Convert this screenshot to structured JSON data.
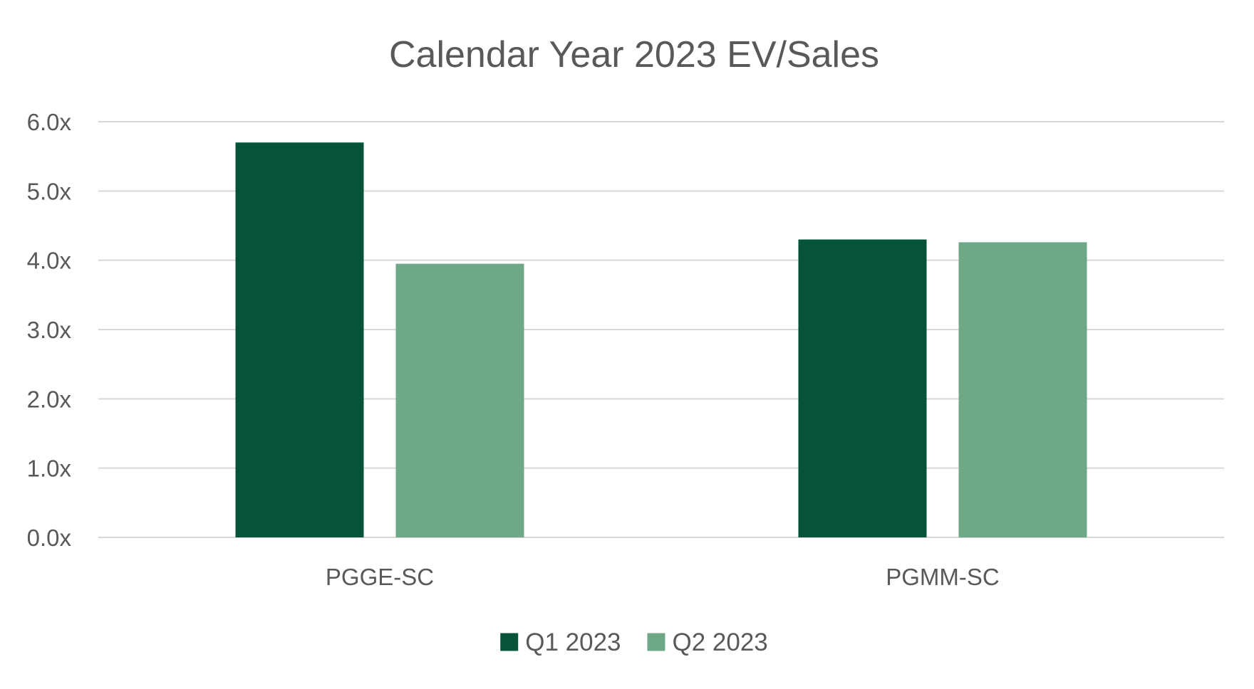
{
  "chart_data": {
    "type": "bar",
    "title": "Calendar Year 2023 EV/Sales",
    "xlabel": "",
    "ylabel": "",
    "categories": [
      "PGGE-SC",
      "PGMM-SC"
    ],
    "series": [
      {
        "name": "Q1 2023",
        "color": "#05543a",
        "values": [
          5.7,
          4.3
        ]
      },
      {
        "name": "Q2 2023",
        "color": "#6fa887",
        "values": [
          3.95,
          4.26
        ]
      }
    ],
    "ylim": [
      0,
      6
    ],
    "yticks": [
      0,
      1,
      2,
      3,
      4,
      5,
      6
    ],
    "ytick_labels": [
      "0.0x",
      "1.0x",
      "2.0x",
      "3.0x",
      "4.0x",
      "5.0x",
      "6.0x"
    ],
    "grid": true,
    "legend_position": "bottom"
  }
}
